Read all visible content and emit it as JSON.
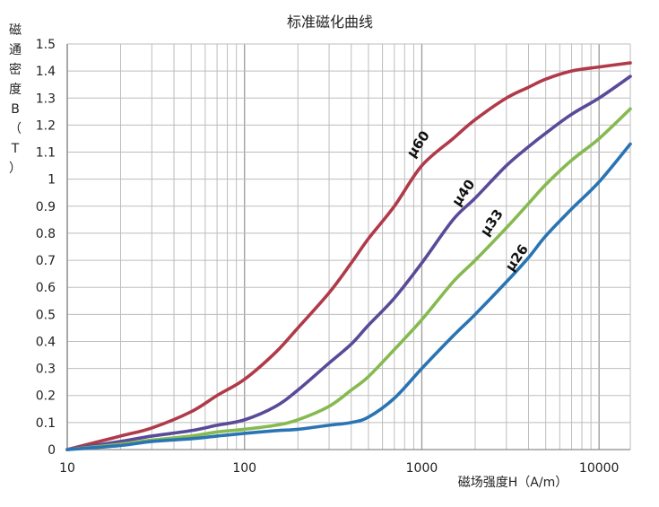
{
  "chart_data": {
    "type": "line",
    "title": "标准磁化曲线",
    "xlabel": "磁场强度H（A/m）",
    "ylabel_chars": [
      "磁",
      "通",
      "密",
      "度",
      "B",
      "（",
      "T",
      "）"
    ],
    "xscale": "log",
    "xlim": [
      10,
      15000
    ],
    "ylim": [
      0,
      1.5
    ],
    "x_ticks": [
      {
        "value": 10,
        "label": "10"
      },
      {
        "value": 100,
        "label": "100"
      },
      {
        "value": 1000,
        "label": "1000"
      },
      {
        "value": 10000,
        "label": "10000"
      }
    ],
    "y_ticks": [
      {
        "value": 0,
        "label": "0"
      },
      {
        "value": 0.1,
        "label": "0.1"
      },
      {
        "value": 0.2,
        "label": "0.2"
      },
      {
        "value": 0.3,
        "label": "0.3"
      },
      {
        "value": 0.4,
        "label": "0.4"
      },
      {
        "value": 0.5,
        "label": "0.5"
      },
      {
        "value": 0.6,
        "label": "0.6"
      },
      {
        "value": 0.7,
        "label": "0.7"
      },
      {
        "value": 0.8,
        "label": "0.8"
      },
      {
        "value": 0.9,
        "label": "0.9"
      },
      {
        "value": 1.0,
        "label": "1"
      },
      {
        "value": 1.1,
        "label": "1.1"
      },
      {
        "value": 1.2,
        "label": "1.2"
      },
      {
        "value": 1.3,
        "label": "1.3"
      },
      {
        "value": 1.4,
        "label": "1.4"
      },
      {
        "value": 1.5,
        "label": "1.5"
      }
    ],
    "grid": true,
    "series": [
      {
        "name": "μ60",
        "color": "#b03a4a",
        "points": [
          [
            10,
            0
          ],
          [
            20,
            0.05
          ],
          [
            30,
            0.08
          ],
          [
            50,
            0.14
          ],
          [
            70,
            0.2
          ],
          [
            100,
            0.26
          ],
          [
            150,
            0.36
          ],
          [
            200,
            0.45
          ],
          [
            300,
            0.58
          ],
          [
            400,
            0.69
          ],
          [
            500,
            0.78
          ],
          [
            700,
            0.9
          ],
          [
            1000,
            1.05
          ],
          [
            1500,
            1.15
          ],
          [
            2000,
            1.22
          ],
          [
            3000,
            1.3
          ],
          [
            4000,
            1.34
          ],
          [
            5000,
            1.37
          ],
          [
            7000,
            1.4
          ],
          [
            10000,
            1.415
          ],
          [
            15000,
            1.43
          ]
        ],
        "label_at": [
          1000,
          1.12
        ]
      },
      {
        "name": "μ40",
        "color": "#5a4a99",
        "points": [
          [
            10,
            0
          ],
          [
            20,
            0.03
          ],
          [
            30,
            0.05
          ],
          [
            50,
            0.07
          ],
          [
            70,
            0.09
          ],
          [
            100,
            0.11
          ],
          [
            150,
            0.16
          ],
          [
            200,
            0.22
          ],
          [
            300,
            0.32
          ],
          [
            400,
            0.39
          ],
          [
            500,
            0.46
          ],
          [
            700,
            0.56
          ],
          [
            1000,
            0.69
          ],
          [
            1500,
            0.85
          ],
          [
            2000,
            0.93
          ],
          [
            3000,
            1.05
          ],
          [
            4000,
            1.12
          ],
          [
            5000,
            1.17
          ],
          [
            7000,
            1.24
          ],
          [
            10000,
            1.3
          ],
          [
            15000,
            1.38
          ]
        ],
        "label_at": [
          1800,
          0.94
        ]
      },
      {
        "name": "μ33",
        "color": "#86ba50",
        "points": [
          [
            10,
            0
          ],
          [
            20,
            0.02
          ],
          [
            30,
            0.035
          ],
          [
            50,
            0.05
          ],
          [
            70,
            0.065
          ],
          [
            100,
            0.075
          ],
          [
            150,
            0.09
          ],
          [
            200,
            0.11
          ],
          [
            300,
            0.16
          ],
          [
            400,
            0.22
          ],
          [
            500,
            0.27
          ],
          [
            700,
            0.37
          ],
          [
            1000,
            0.48
          ],
          [
            1500,
            0.62
          ],
          [
            2000,
            0.7
          ],
          [
            3000,
            0.82
          ],
          [
            4000,
            0.91
          ],
          [
            5000,
            0.98
          ],
          [
            7000,
            1.07
          ],
          [
            10000,
            1.15
          ],
          [
            15000,
            1.26
          ]
        ],
        "label_at": [
          2600,
          0.83
        ]
      },
      {
        "name": "μ26",
        "color": "#2a74b4",
        "points": [
          [
            10,
            0
          ],
          [
            20,
            0.015
          ],
          [
            30,
            0.03
          ],
          [
            50,
            0.04
          ],
          [
            70,
            0.05
          ],
          [
            100,
            0.06
          ],
          [
            150,
            0.07
          ],
          [
            200,
            0.075
          ],
          [
            300,
            0.09
          ],
          [
            400,
            0.1
          ],
          [
            500,
            0.12
          ],
          [
            700,
            0.19
          ],
          [
            1000,
            0.3
          ],
          [
            1500,
            0.42
          ],
          [
            2000,
            0.5
          ],
          [
            3000,
            0.62
          ],
          [
            4000,
            0.71
          ],
          [
            5000,
            0.79
          ],
          [
            7000,
            0.89
          ],
          [
            10000,
            0.99
          ],
          [
            15000,
            1.13
          ]
        ],
        "label_at": [
          3600,
          0.7
        ]
      }
    ]
  }
}
